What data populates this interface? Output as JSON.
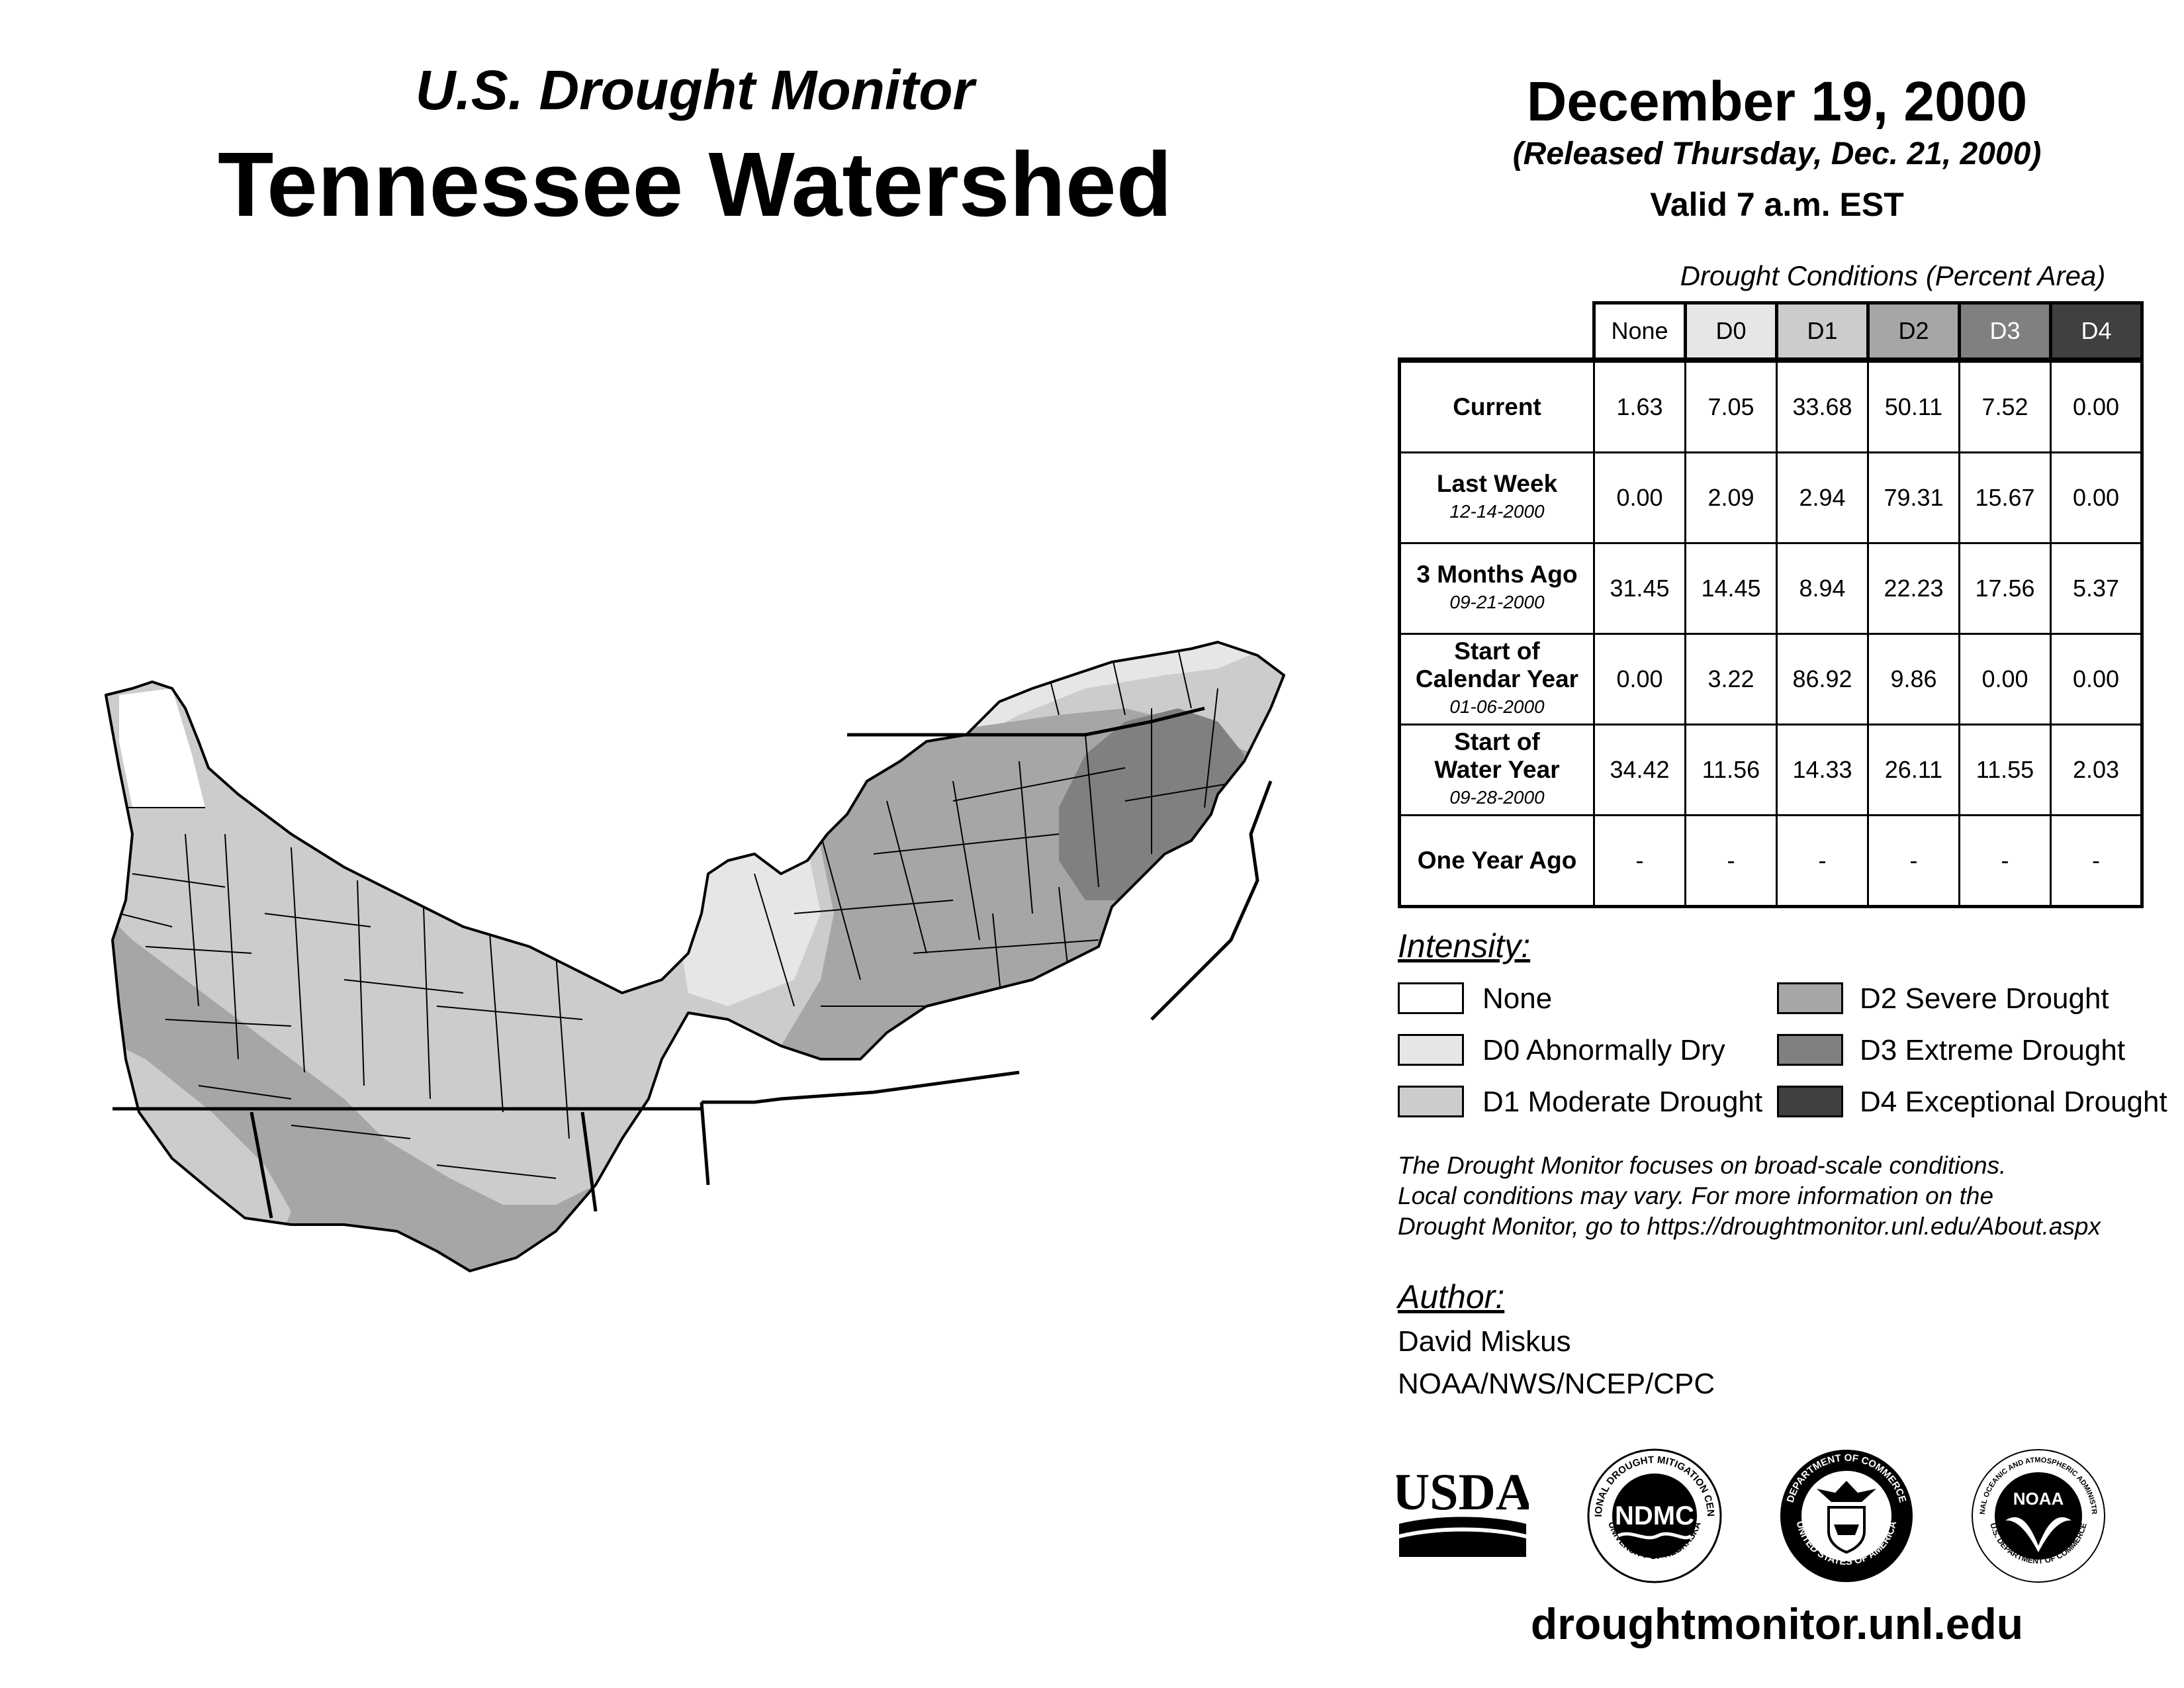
{
  "header": {
    "subtitle": "U.S. Drought Monitor",
    "title": "Tennessee Watershed",
    "date": "December 19, 2000",
    "released": "(Released Thursday, Dec. 21, 2000)",
    "valid": "Valid 7 a.m. EST"
  },
  "table": {
    "caption": "Drought Conditions (Percent Area)",
    "columns": [
      "None",
      "D0",
      "D1",
      "D2",
      "D3",
      "D4"
    ],
    "column_colors": [
      "#ffffff",
      "#e6e6e6",
      "#cccccc",
      "#a6a6a6",
      "#808080",
      "#404040"
    ],
    "rows": [
      {
        "label": "Current",
        "label2": "",
        "date": "",
        "values": [
          "1.63",
          "7.05",
          "33.68",
          "50.11",
          "7.52",
          "0.00"
        ]
      },
      {
        "label": "Last Week",
        "label2": "",
        "date": "12-14-2000",
        "values": [
          "0.00",
          "2.09",
          "2.94",
          "79.31",
          "15.67",
          "0.00"
        ]
      },
      {
        "label": "3 Months Ago",
        "label2": "",
        "date": "09-21-2000",
        "values": [
          "31.45",
          "14.45",
          "8.94",
          "22.23",
          "17.56",
          "5.37"
        ]
      },
      {
        "label": "Start of",
        "label2": "Calendar Year",
        "date": "01-06-2000",
        "values": [
          "0.00",
          "3.22",
          "86.92",
          "9.86",
          "0.00",
          "0.00"
        ]
      },
      {
        "label": "Start of",
        "label2": "Water Year",
        "date": "09-28-2000",
        "values": [
          "34.42",
          "11.56",
          "14.33",
          "26.11",
          "11.55",
          "2.03"
        ]
      },
      {
        "label": "One Year Ago",
        "label2": "",
        "date": "",
        "values": [
          "-",
          "-",
          "-",
          "-",
          "-",
          "-"
        ]
      }
    ]
  },
  "legend": {
    "heading": "Intensity:",
    "items": [
      {
        "label": "None",
        "color": "#ffffff"
      },
      {
        "label": "D0 Abnormally Dry",
        "color": "#e6e6e6"
      },
      {
        "label": "D1 Moderate Drought",
        "color": "#cccccc"
      },
      {
        "label": "D2 Severe Drought",
        "color": "#a6a6a6"
      },
      {
        "label": "D3 Extreme Drought",
        "color": "#808080"
      },
      {
        "label": "D4 Exceptional Drought",
        "color": "#404040"
      }
    ]
  },
  "note": [
    "The Drought Monitor focuses on broad-scale conditions.",
    "Local conditions may vary. For more information on the",
    "Drought Monitor, go to https://droughtmonitor.unl.edu/About.aspx"
  ],
  "author": {
    "heading": "Author:",
    "name": "David Miskus",
    "org": "NOAA/NWS/NCEP/CPC"
  },
  "logos": {
    "usda": "USDA",
    "ndmc": "NDMC",
    "ndmc_ring_top": "NATIONAL DROUGHT MITIGATION CENTER",
    "ndmc_ring_bottom": "UNIVERSITY OF NEBRASKA",
    "doc_ring_top": "DEPARTMENT OF COMMERCE",
    "doc_ring_bottom": "UNITED STATES OF AMERICA",
    "noaa": "NOAA",
    "noaa_ring_top": "NATIONAL OCEANIC AND ATMOSPHERIC ADMINISTRATION",
    "noaa_ring_bottom": "U.S. DEPARTMENT OF COMMERCE"
  },
  "footer": {
    "url": "droughtmonitor.unl.edu"
  }
}
